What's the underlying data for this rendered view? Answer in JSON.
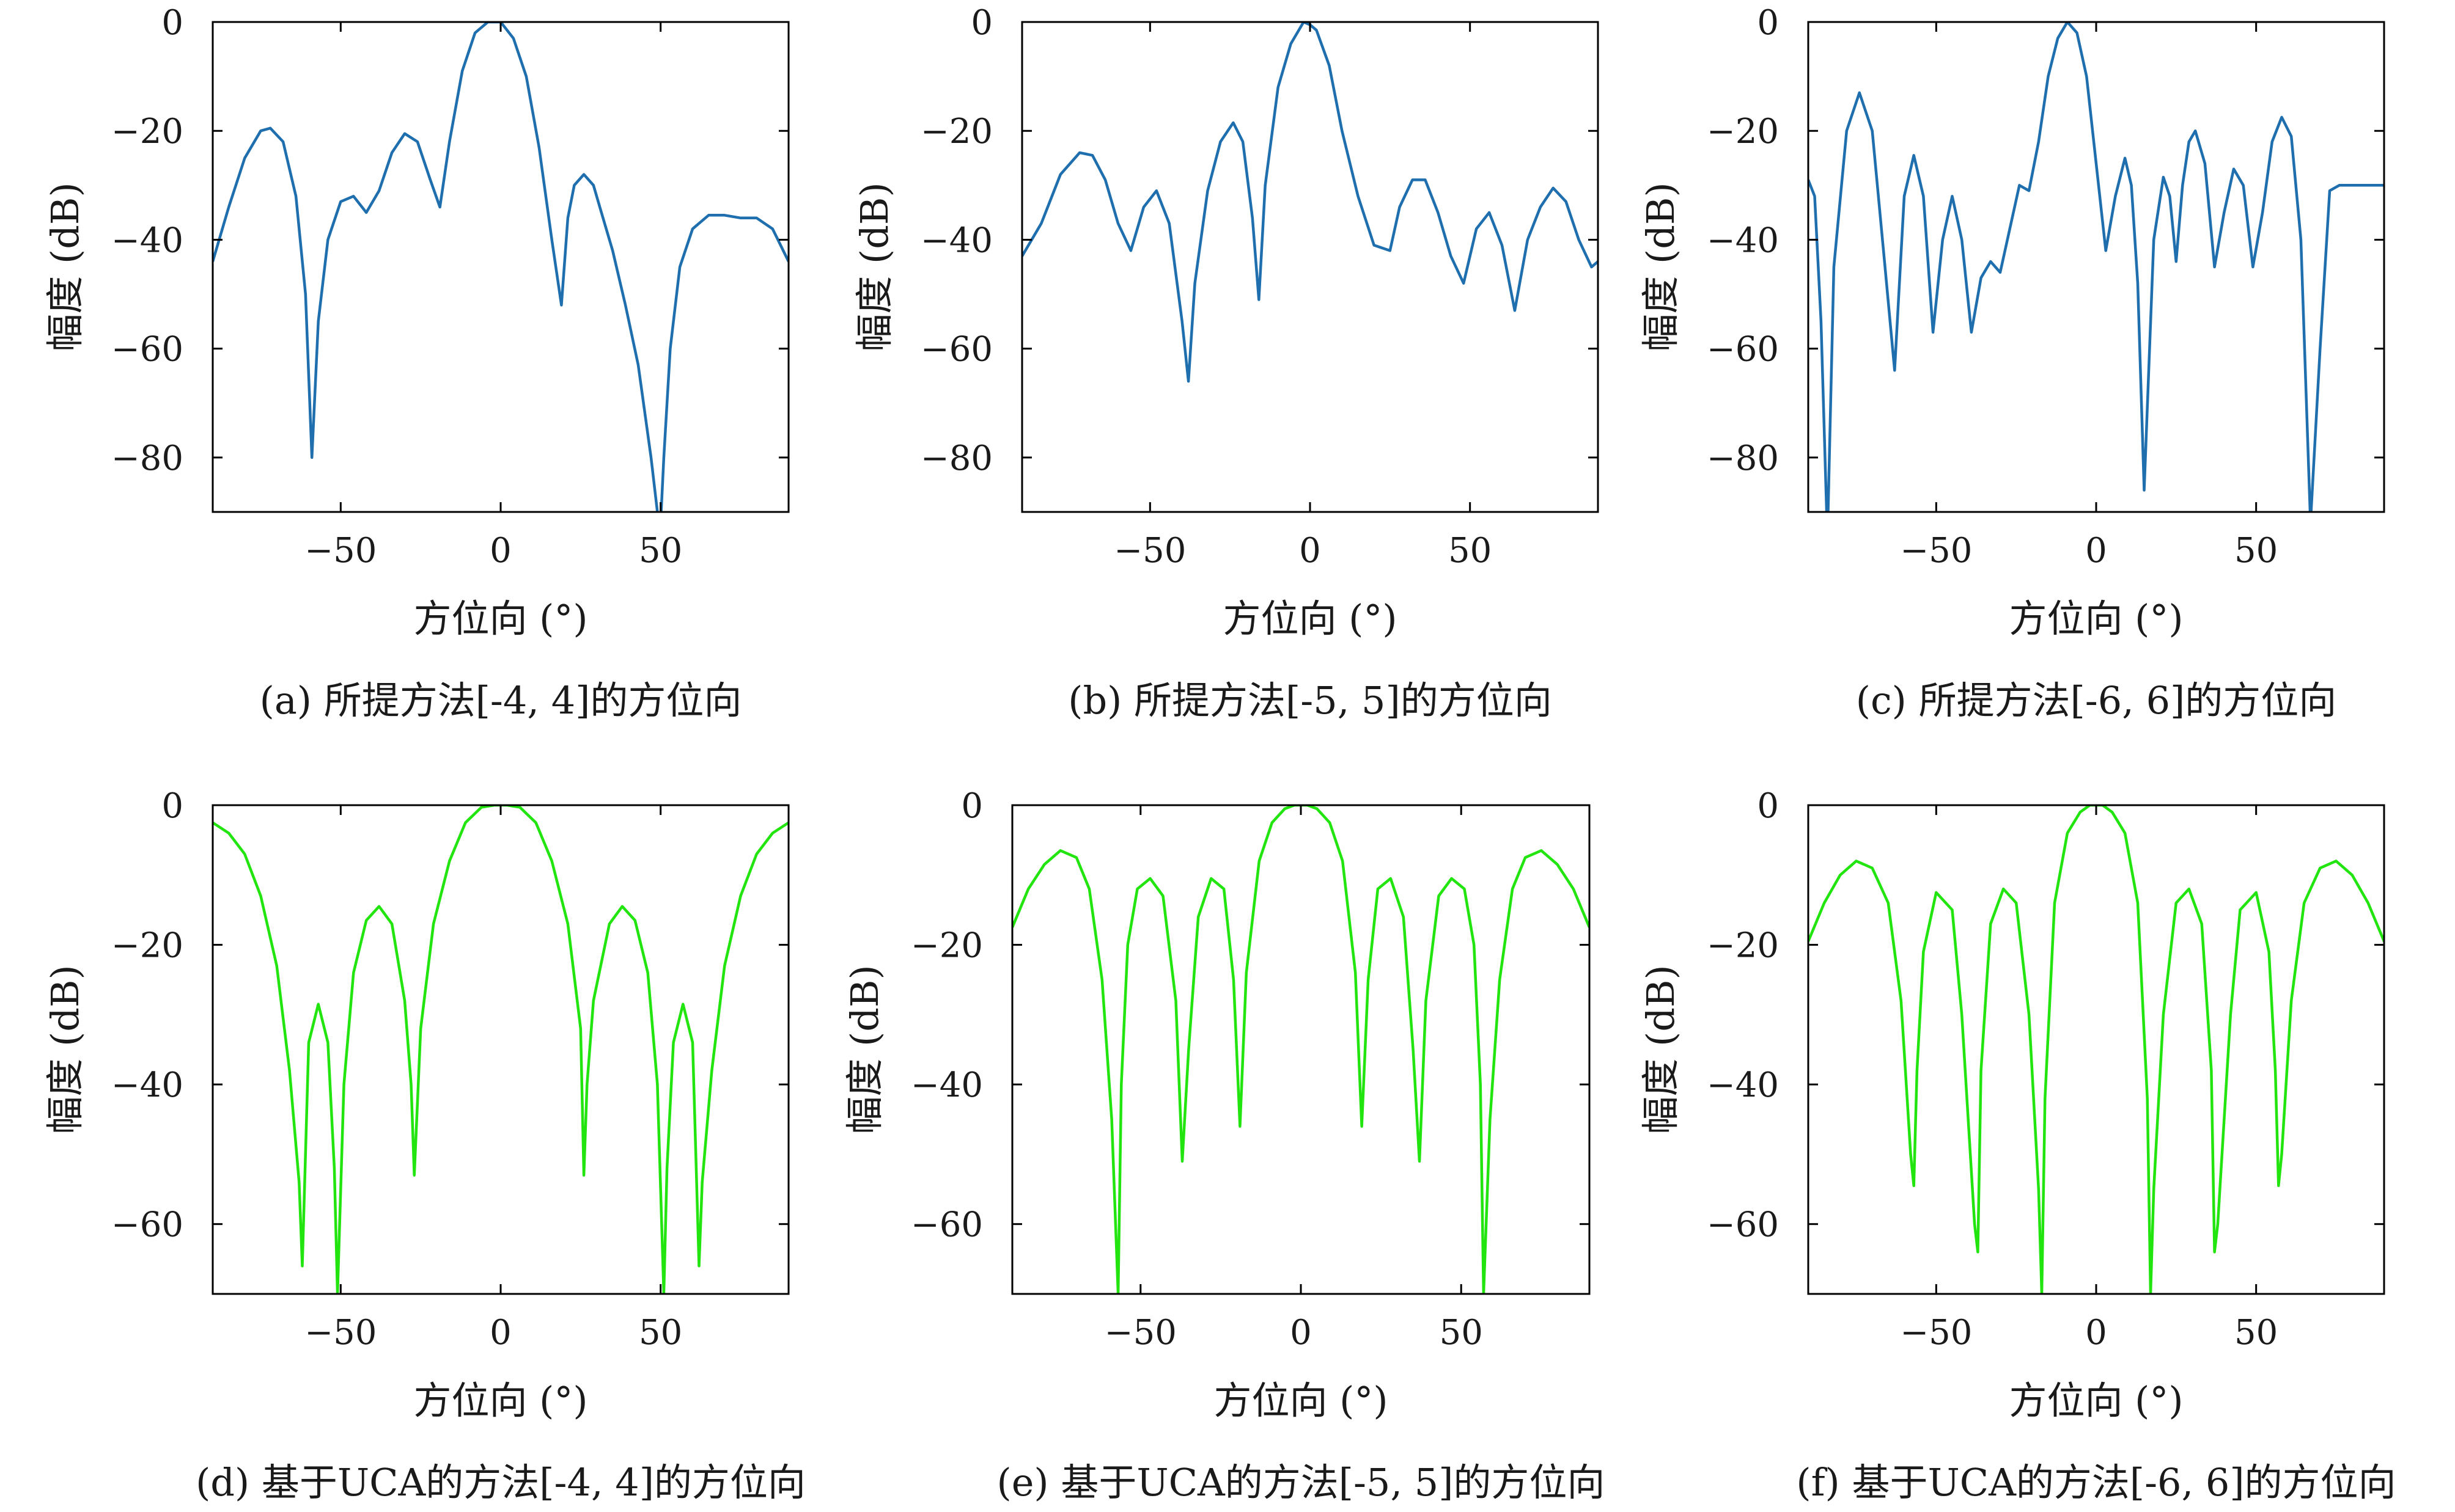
{
  "chart_data": [
    {
      "type": "line",
      "caption": "(a) 所提方法[-4, 4]的方位向",
      "xlabel": "方位向 (°)",
      "ylabel": "幅度 (dB)",
      "xlim": [
        -90,
        90
      ],
      "ylim": [
        -90,
        0
      ],
      "xticks": [
        -50,
        0,
        50
      ],
      "yticks": [
        0,
        -20,
        -40,
        -60,
        -80
      ],
      "grid": false,
      "color": "#1f6fae",
      "x": [
        -90,
        -85,
        -80,
        -75,
        -72,
        -68,
        -64,
        -61,
        -59,
        -57,
        -54,
        -50,
        -46,
        -42,
        -38,
        -34,
        -30,
        -26,
        -22,
        -19,
        -16,
        -12,
        -8,
        -4,
        0,
        4,
        8,
        12,
        16,
        19,
        21,
        23,
        26,
        29,
        31,
        35,
        39,
        43,
        47,
        49,
        50,
        51,
        53,
        56,
        60,
        65,
        70,
        75,
        80,
        85,
        90
      ],
      "y": [
        -44,
        -34,
        -25,
        -20,
        -19.5,
        -22,
        -32,
        -50,
        -80,
        -55,
        -40,
        -33,
        -32,
        -35,
        -31,
        -24,
        -20.5,
        -22,
        -29,
        -34,
        -22,
        -9,
        -2,
        0,
        0,
        -3,
        -10,
        -23,
        -40,
        -52,
        -36,
        -30,
        -28,
        -30,
        -34,
        -42,
        -52,
        -63,
        -80,
        -90,
        -92,
        -80,
        -60,
        -45,
        -38,
        -35.5,
        -35.5,
        -36,
        -36,
        -38,
        -44
      ]
    },
    {
      "type": "line",
      "caption": "(b) 所提方法[-5, 5]的方位向",
      "xlabel": "方位向 (°)",
      "ylabel": "幅度 (dB)",
      "xlim": [
        -90,
        90
      ],
      "ylim": [
        -90,
        0
      ],
      "xticks": [
        -50,
        0,
        50
      ],
      "yticks": [
        0,
        -20,
        -40,
        -60,
        -80
      ],
      "grid": false,
      "color": "#1f6fae",
      "x": [
        -90,
        -84,
        -78,
        -72,
        -68,
        -64,
        -60,
        -56,
        -52,
        -48,
        -44,
        -40,
        -38,
        -36,
        -32,
        -28,
        -24,
        -21,
        -18,
        -16,
        -14,
        -10,
        -6,
        -2,
        0,
        2,
        6,
        10,
        15,
        20,
        25,
        28,
        32,
        36,
        40,
        44,
        48,
        52,
        56,
        60,
        64,
        68,
        72,
        76,
        80,
        84,
        88,
        90
      ],
      "y": [
        -43,
        -37,
        -28,
        -24,
        -24.5,
        -29,
        -37,
        -42,
        -34,
        -31,
        -37,
        -55,
        -66,
        -48,
        -31,
        -22,
        -18.5,
        -22,
        -36,
        -51,
        -30,
        -12,
        -4,
        0,
        -0.5,
        -1.5,
        -8,
        -20,
        -32,
        -41,
        -42,
        -34,
        -29,
        -29,
        -35,
        -43,
        -48,
        -38,
        -35,
        -41,
        -53,
        -40,
        -34,
        -30.5,
        -33,
        -40,
        -45,
        -44
      ]
    },
    {
      "type": "line",
      "caption": "(c) 所提方法[-6, 6]的方位向",
      "xlabel": "方位向 (°)",
      "ylabel": "幅度 (dB)",
      "xlim": [
        -90,
        90
      ],
      "ylim": [
        -90,
        0
      ],
      "xticks": [
        -50,
        0,
        50
      ],
      "yticks": [
        0,
        -20,
        -40,
        -60,
        -80
      ],
      "grid": false,
      "color": "#1f6fae",
      "x": [
        -90,
        -88,
        -86,
        -84,
        -82,
        -78,
        -74,
        -70,
        -66,
        -63,
        -60,
        -57,
        -54,
        -51,
        -48,
        -45,
        -42,
        -39,
        -36,
        -33,
        -30,
        -27,
        -24,
        -21,
        -18,
        -15,
        -12,
        -9,
        -6,
        -3,
        0,
        3,
        6,
        9,
        11,
        13,
        15,
        18,
        21,
        23,
        25,
        27,
        29,
        31,
        34,
        37,
        40,
        43,
        46,
        49,
        52,
        55,
        58,
        61,
        64,
        67,
        70,
        73,
        76,
        79,
        82,
        85,
        88,
        90
      ],
      "y": [
        -29,
        -32,
        -55,
        -95,
        -45,
        -20,
        -13,
        -20,
        -45,
        -64,
        -32,
        -24.5,
        -32,
        -57,
        -40,
        -32,
        -40,
        -57,
        -47,
        -44,
        -46,
        -38,
        -30,
        -31,
        -22,
        -10,
        -3,
        0,
        -2,
        -10,
        -26,
        -42,
        -32,
        -25,
        -30,
        -48,
        -86,
        -40,
        -28.5,
        -32,
        -44,
        -30,
        -22,
        -20,
        -26,
        -45,
        -35,
        -27,
        -30,
        -45,
        -35,
        -22,
        -17.5,
        -21,
        -40,
        -92,
        -60,
        -31,
        -30,
        -30,
        -30,
        -30,
        -30,
        -30
      ]
    },
    {
      "type": "line",
      "caption": "(d) 基于UCA的方法[-4, 4]的方位向",
      "xlabel": "方位向 (°)",
      "ylabel": "幅度 (dB)",
      "xlim": [
        -90,
        90
      ],
      "ylim": [
        -70,
        0
      ],
      "xticks": [
        -50,
        0,
        50
      ],
      "yticks": [
        0,
        -20,
        -40,
        -60
      ],
      "grid": false,
      "color": "#22e40f",
      "x": [
        -90,
        -85,
        -80,
        -75,
        -70,
        -66,
        -63,
        -62,
        -60,
        -57,
        -54,
        -52,
        -51,
        -49,
        -46,
        -42,
        -38,
        -34,
        -30,
        -28,
        -27,
        -25,
        -21,
        -16,
        -11,
        -6,
        -2,
        0,
        2,
        6,
        11,
        16,
        21,
        25,
        26,
        27,
        29,
        34,
        38,
        42,
        46,
        49,
        51,
        52,
        54,
        57,
        60,
        62,
        63,
        66,
        70,
        75,
        80,
        85,
        90
      ],
      "y": [
        -2.5,
        -4,
        -7,
        -13,
        -23,
        -38,
        -54,
        -66,
        -34,
        -28.5,
        -34,
        -52,
        -70,
        -40,
        -24,
        -16.5,
        -14.5,
        -17,
        -28,
        -40,
        -53,
        -32,
        -17,
        -8,
        -2.5,
        -0.3,
        0,
        0,
        0,
        -0.3,
        -2.5,
        -8,
        -17,
        -32,
        -53,
        -40,
        -28,
        -17,
        -14.5,
        -16.5,
        -24,
        -40,
        -70,
        -52,
        -34,
        -28.5,
        -34,
        -66,
        -54,
        -38,
        -23,
        -13,
        -7,
        -4,
        -2.5
      ]
    },
    {
      "type": "line",
      "caption": "(e) 基于UCA的方法[-5, 5]的方位向",
      "xlabel": "方位向 (°)",
      "ylabel": "幅度 (dB)",
      "xlim": [
        -90,
        90
      ],
      "ylim": [
        -70,
        0
      ],
      "xticks": [
        -50,
        0,
        50
      ],
      "yticks": [
        0,
        -20,
        -40,
        -60
      ],
      "grid": false,
      "color": "#22e40f",
      "x": [
        -90,
        -85,
        -80,
        -75,
        -70,
        -66,
        -62,
        -59,
        -57,
        -56,
        -54,
        -51,
        -47,
        -43,
        -39,
        -37,
        -35,
        -32,
        -28,
        -24,
        -21,
        -19,
        -17,
        -13,
        -9,
        -5,
        -2,
        0,
        2,
        5,
        9,
        13,
        17,
        19,
        21,
        24,
        28,
        32,
        35,
        37,
        39,
        43,
        47,
        51,
        54,
        56,
        57,
        59,
        62,
        66,
        70,
        75,
        80,
        85,
        90
      ],
      "y": [
        -17.5,
        -12,
        -8.5,
        -6.5,
        -7.5,
        -12,
        -25,
        -45,
        -70,
        -40,
        -20,
        -12,
        -10.5,
        -13,
        -28,
        -51,
        -35,
        -16,
        -10.5,
        -12,
        -25,
        -46,
        -24,
        -8,
        -2.5,
        -0.5,
        0,
        0,
        0,
        -0.5,
        -2.5,
        -8,
        -24,
        -46,
        -25,
        -12,
        -10.5,
        -16,
        -35,
        -51,
        -28,
        -13,
        -10.5,
        -12,
        -20,
        -40,
        -70,
        -45,
        -25,
        -12,
        -7.5,
        -6.5,
        -8.5,
        -12,
        -17.5
      ]
    },
    {
      "type": "line",
      "caption": "(f) 基于UCA的方法[-6, 6]的方位向",
      "xlabel": "方位向 (°)",
      "ylabel": "幅度 (dB)",
      "xlim": [
        -90,
        90
      ],
      "ylim": [
        -70,
        0
      ],
      "xticks": [
        -50,
        0,
        50
      ],
      "yticks": [
        0,
        -20,
        -40,
        -60
      ],
      "grid": false,
      "color": "#22e40f",
      "x": [
        -90,
        -85,
        -80,
        -75,
        -70,
        -65,
        -61,
        -58,
        -57,
        -56,
        -54,
        -50,
        -45,
        -42,
        -38,
        -37,
        -36,
        -33,
        -29,
        -25,
        -21,
        -18,
        -17,
        -16,
        -13,
        -9,
        -5,
        -2,
        0,
        2,
        5,
        9,
        13,
        16,
        17,
        18,
        21,
        25,
        29,
        33,
        36,
        37,
        38,
        42,
        45,
        50,
        54,
        56,
        57,
        58,
        61,
        65,
        70,
        75,
        80,
        85,
        90
      ],
      "y": [
        -19.5,
        -14,
        -10,
        -8,
        -9,
        -14,
        -28,
        -50,
        -54.5,
        -38,
        -21,
        -12.5,
        -15,
        -30,
        -60,
        -64,
        -38,
        -17,
        -12,
        -14,
        -30,
        -55,
        -70,
        -42,
        -14,
        -4,
        -1,
        0,
        0,
        0,
        -1,
        -4,
        -14,
        -42,
        -70,
        -55,
        -30,
        -14,
        -12,
        -17,
        -38,
        -64,
        -60,
        -30,
        -15,
        -12.5,
        -21,
        -38,
        -54.5,
        -50,
        -28,
        -14,
        -9,
        -8,
        -10,
        -14,
        -19.5
      ]
    }
  ]
}
